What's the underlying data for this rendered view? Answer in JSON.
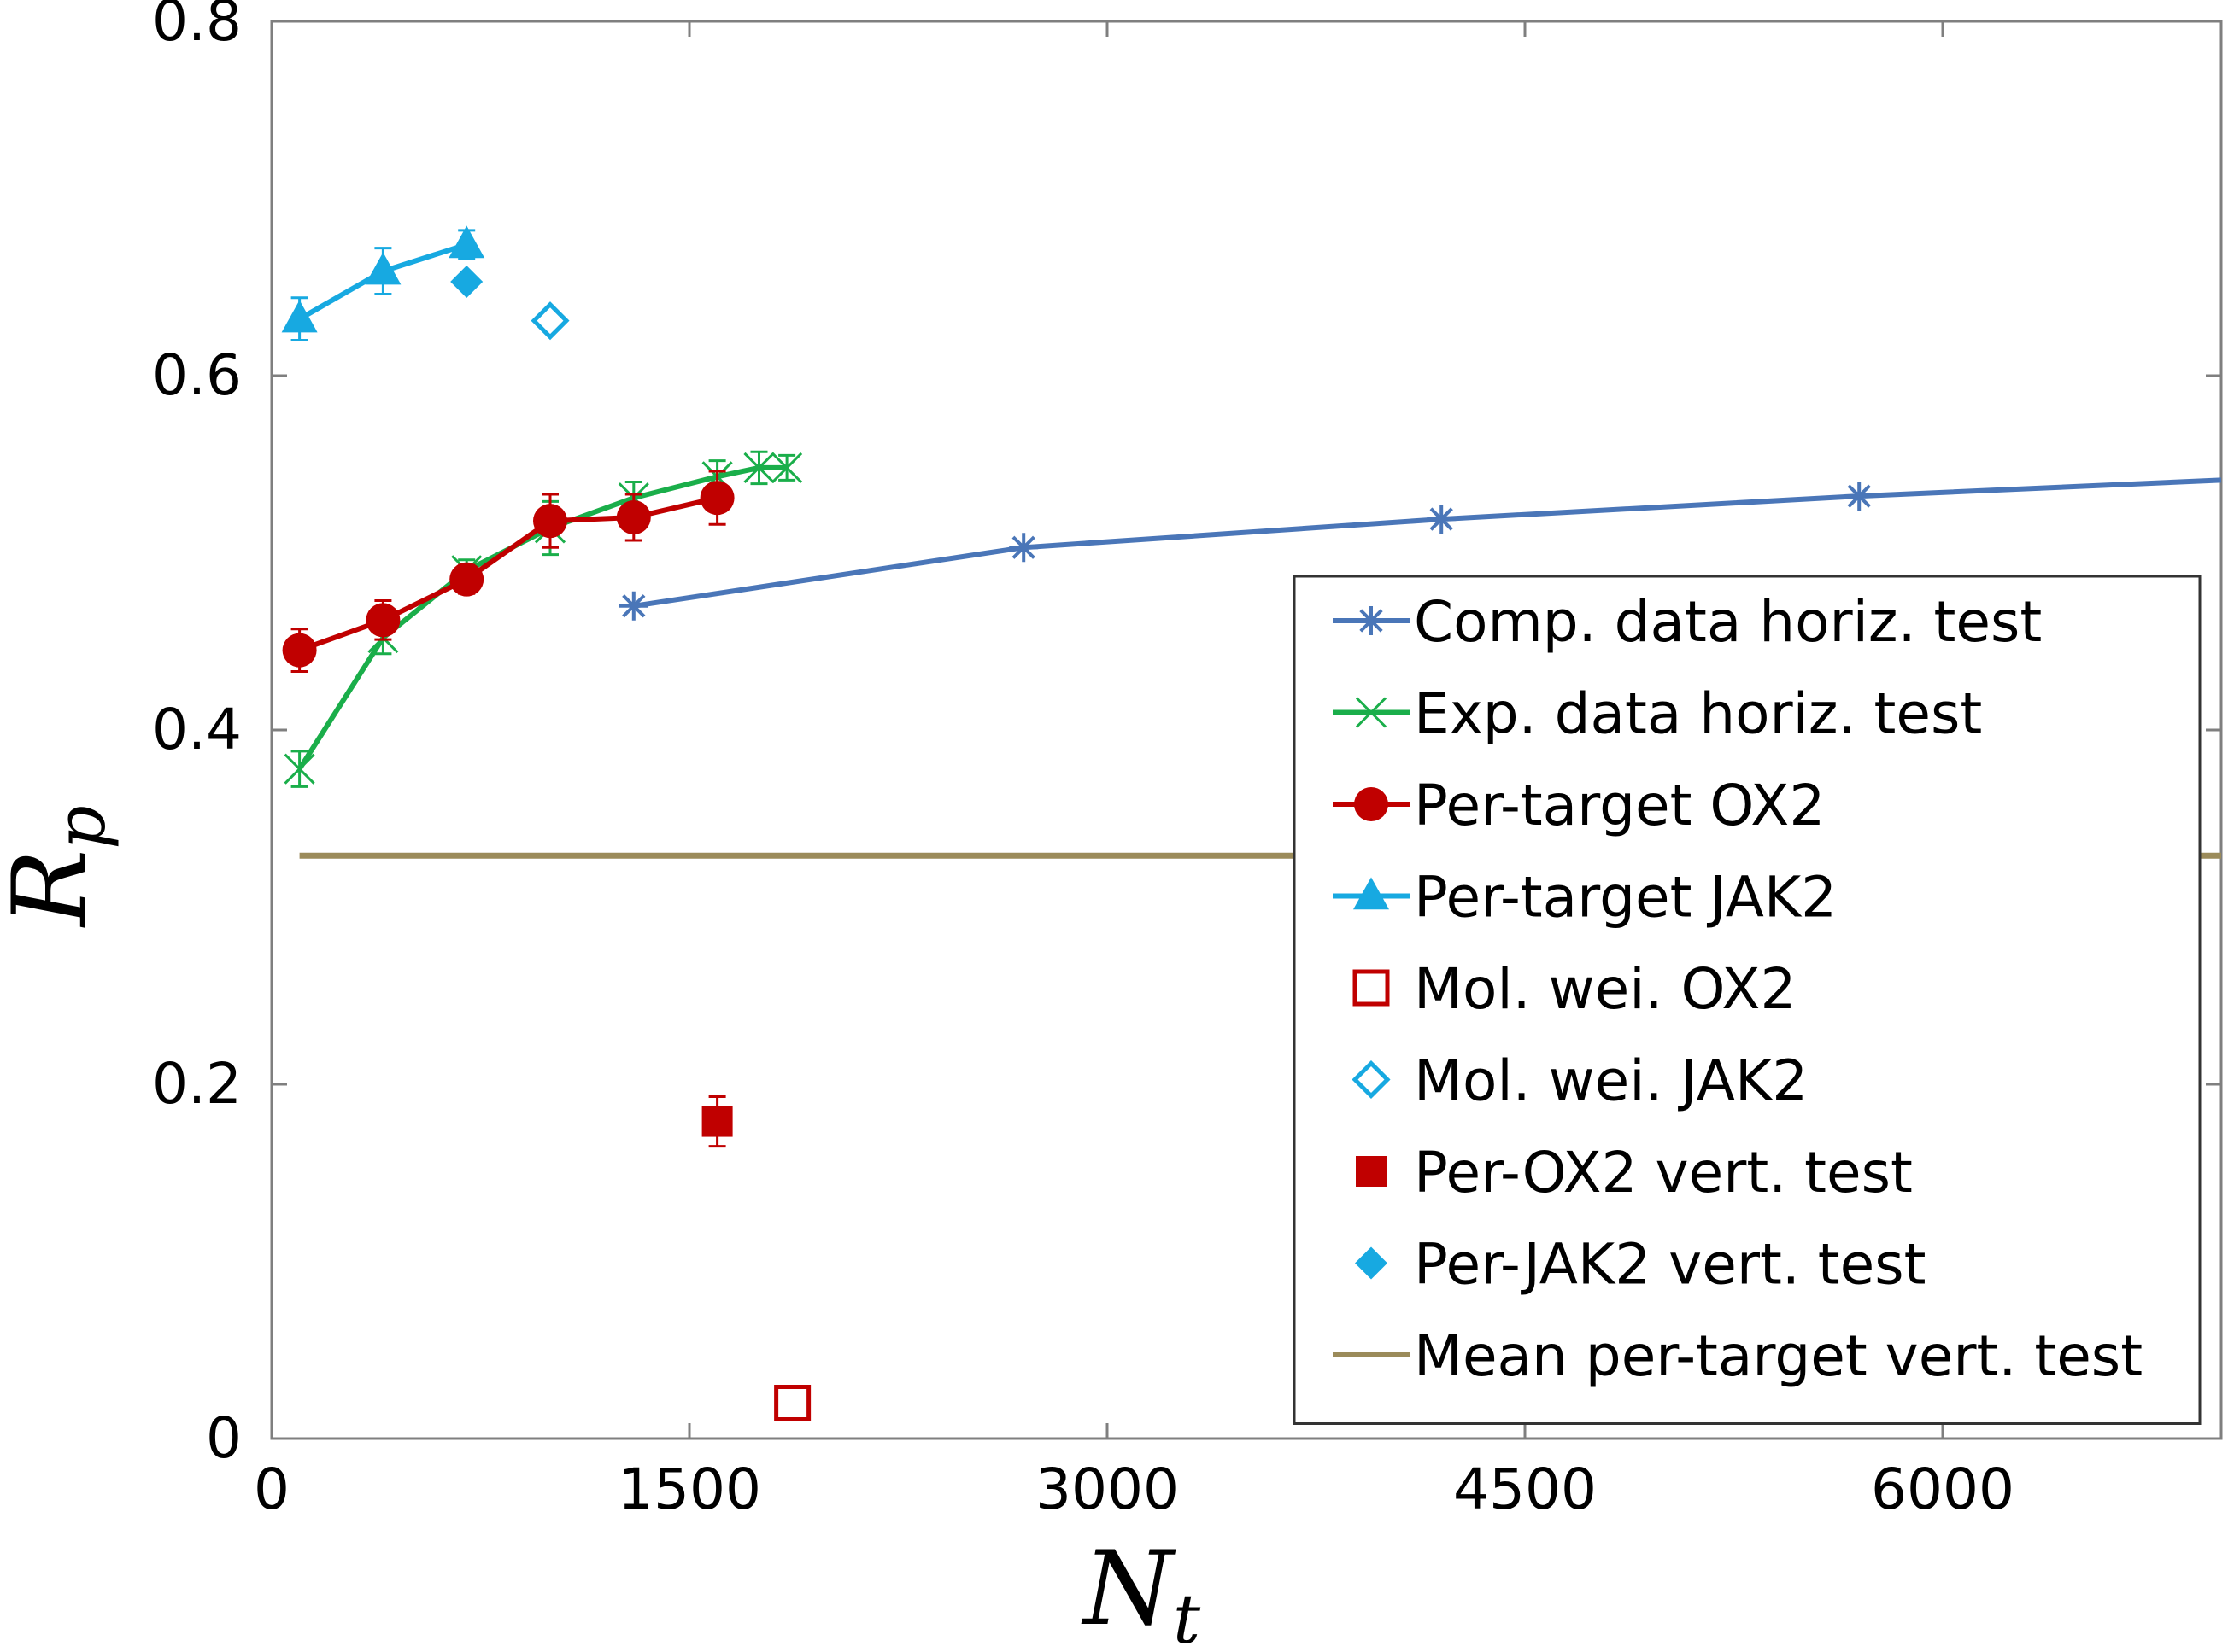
{
  "chart_data": {
    "type": "line",
    "title": "",
    "xlabel": "N",
    "xlabel_subscript": "t",
    "ylabel": "R",
    "ylabel_subscript": "p",
    "xlim": [
      0,
      7000
    ],
    "ylim": [
      0,
      0.8
    ],
    "xticks": [
      0,
      1500,
      3000,
      4500,
      6000
    ],
    "yticks": [
      0,
      0.2,
      0.4,
      0.6,
      0.8
    ],
    "xtick_labels": [
      "0",
      "1500",
      "3000",
      "4500",
      "6000"
    ],
    "ytick_labels": [
      "0",
      "0.2",
      "0.4",
      "0.6",
      "0.8"
    ],
    "grid": false,
    "legend_position": "right-center",
    "series": [
      {
        "name": "Comp. data horiz. test",
        "color": "#4a76b8",
        "marker": "asterisk",
        "line": true,
        "points": [
          [
            1300,
            0.47
          ],
          [
            2700,
            0.503
          ],
          [
            4200,
            0.519
          ],
          [
            5700,
            0.532
          ],
          [
            7000,
            0.541
          ]
        ]
      },
      {
        "name": "Exp. data horiz. test",
        "color": "#1aae4a",
        "marker": "x",
        "line": true,
        "points": [
          [
            100,
            0.378
          ],
          [
            400,
            0.452
          ],
          [
            700,
            0.49
          ],
          [
            1000,
            0.514
          ],
          [
            1300,
            0.531
          ],
          [
            1600,
            0.543
          ],
          [
            1750,
            0.548
          ],
          [
            1850,
            0.548
          ]
        ],
        "errors": [
          0.01,
          0.009,
          0.006,
          0.015,
          0.009,
          0.009,
          0.009,
          0.007
        ]
      },
      {
        "name": "Per-target OX2",
        "color": "#c00000",
        "marker": "circle",
        "line": true,
        "points": [
          [
            100,
            0.445
          ],
          [
            400,
            0.462
          ],
          [
            700,
            0.485
          ],
          [
            1000,
            0.518
          ],
          [
            1300,
            0.52
          ],
          [
            1600,
            0.531
          ]
        ],
        "errors": [
          0.012,
          0.011,
          0.008,
          0.015,
          0.013,
          0.015
        ]
      },
      {
        "name": "Per-target JAK2",
        "color": "#17a9e1",
        "marker": "triangle",
        "line": true,
        "points": [
          [
            100,
            0.632
          ],
          [
            400,
            0.659
          ],
          [
            700,
            0.674
          ]
        ],
        "errors": [
          0.012,
          0.013,
          0.008
        ]
      },
      {
        "name": "Mol. wei. OX2",
        "color": "#c00000",
        "marker": "square-open",
        "line": false,
        "points": [
          [
            1870,
            0.02
          ]
        ]
      },
      {
        "name": "Mol. wei. JAK2",
        "color": "#17a9e1",
        "marker": "diamond-open",
        "line": false,
        "points": [
          [
            1000,
            0.631
          ]
        ]
      },
      {
        "name": "Per-OX2 vert. test",
        "color": "#c00000",
        "marker": "square",
        "line": false,
        "points": [
          [
            1600,
            0.179
          ]
        ],
        "errors": [
          0.014
        ]
      },
      {
        "name": "Per-JAK2 vert. test",
        "color": "#17a9e1",
        "marker": "diamond",
        "line": false,
        "points": [
          [
            700,
            0.653
          ]
        ]
      },
      {
        "name": "Mean per-target vert. test",
        "color": "#9b8b5a",
        "marker": "none",
        "line": true,
        "points": [
          [
            100,
            0.329
          ],
          [
            7000,
            0.329
          ]
        ]
      }
    ]
  }
}
